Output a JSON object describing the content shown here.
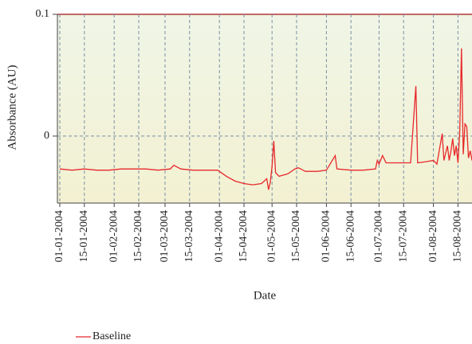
{
  "chart_data": {
    "type": "line",
    "y_label": "Absorbance (AU)",
    "x_label": "Date",
    "x": [
      "01-01-2004",
      "08-01-2004",
      "15-01-2004",
      "22-01-2004",
      "29-01-2004",
      "05-02-2004",
      "12-02-2004",
      "19-02-2004",
      "26-02-2004",
      "04-03-2004",
      "06-03-2004",
      "10-03-2004",
      "17-03-2004",
      "24-03-2004",
      "31-03-2004",
      "05-04-2004",
      "10-04-2004",
      "15-04-2004",
      "20-04-2004",
      "25-04-2004",
      "28-04-2004",
      "29-04-2004",
      "30-04-2004",
      "01-05-2004",
      "02-05-2004",
      "03-05-2004",
      "05-05-2004",
      "10-05-2004",
      "14-05-2004",
      "16-05-2004",
      "20-05-2004",
      "27-05-2004",
      "01-06-2004",
      "06-06-2004",
      "07-06-2004",
      "15-06-2004",
      "22-06-2004",
      "29-06-2004",
      "30-06-2004",
      "01-07-2004",
      "03-07-2004",
      "05-07-2004",
      "12-07-2004",
      "19-07-2004",
      "22-07-2004",
      "23-07-2004",
      "28-07-2004",
      "01-08-2004",
      "03-08-2004",
      "06-08-2004",
      "07-08-2004",
      "09-08-2004",
      "10-08-2004",
      "11-08-2004",
      "12-08-2004",
      "13-08-2004",
      "14-08-2004",
      "15-08-2004",
      "16-08-2004",
      "17-08-2004",
      "18-08-2004",
      "19-08-2004",
      "20-08-2004",
      "21-08-2004",
      "22-08-2004",
      "23-08-2004"
    ],
    "series": [
      {
        "name": "Baseline",
        "color": "#e8282b",
        "values": [
          -0.027,
          -0.028,
          -0.027,
          -0.028,
          -0.028,
          -0.027,
          -0.027,
          -0.027,
          -0.028,
          -0.027,
          -0.024,
          -0.027,
          -0.028,
          -0.028,
          -0.028,
          -0.033,
          -0.037,
          -0.039,
          -0.04,
          -0.039,
          -0.035,
          -0.044,
          -0.038,
          -0.025,
          -0.004,
          -0.03,
          -0.033,
          -0.031,
          -0.027,
          -0.026,
          -0.029,
          -0.029,
          -0.028,
          -0.016,
          -0.027,
          -0.028,
          -0.028,
          -0.027,
          -0.02,
          -0.023,
          -0.016,
          -0.022,
          -0.022,
          -0.022,
          0.041,
          -0.022,
          -0.021,
          -0.02,
          -0.023,
          0.002,
          -0.02,
          -0.008,
          -0.02,
          -0.012,
          -0.002,
          -0.016,
          -0.008,
          -0.022,
          0.003,
          0.072,
          -0.015,
          0.01,
          0.008,
          -0.018,
          -0.012,
          -0.02
        ]
      }
    ],
    "xlim": [
      "01-01-2004",
      "23-08-2004"
    ],
    "xticks": [
      "01-01-2004",
      "15-01-2004",
      "01-02-2004",
      "15-02-2004",
      "01-03-2004",
      "15-03-2004",
      "01-04-2004",
      "15-04-2004",
      "01-05-2004",
      "15-05-2004",
      "01-06-2004",
      "15-06-2004",
      "01-07-2004",
      "15-07-2004",
      "01-08-2004",
      "15-08-2004"
    ],
    "ylim": [
      -0.055,
      0.1
    ],
    "yticks": [
      0,
      0.1
    ],
    "grid": true,
    "legend": "bottom-left"
  }
}
